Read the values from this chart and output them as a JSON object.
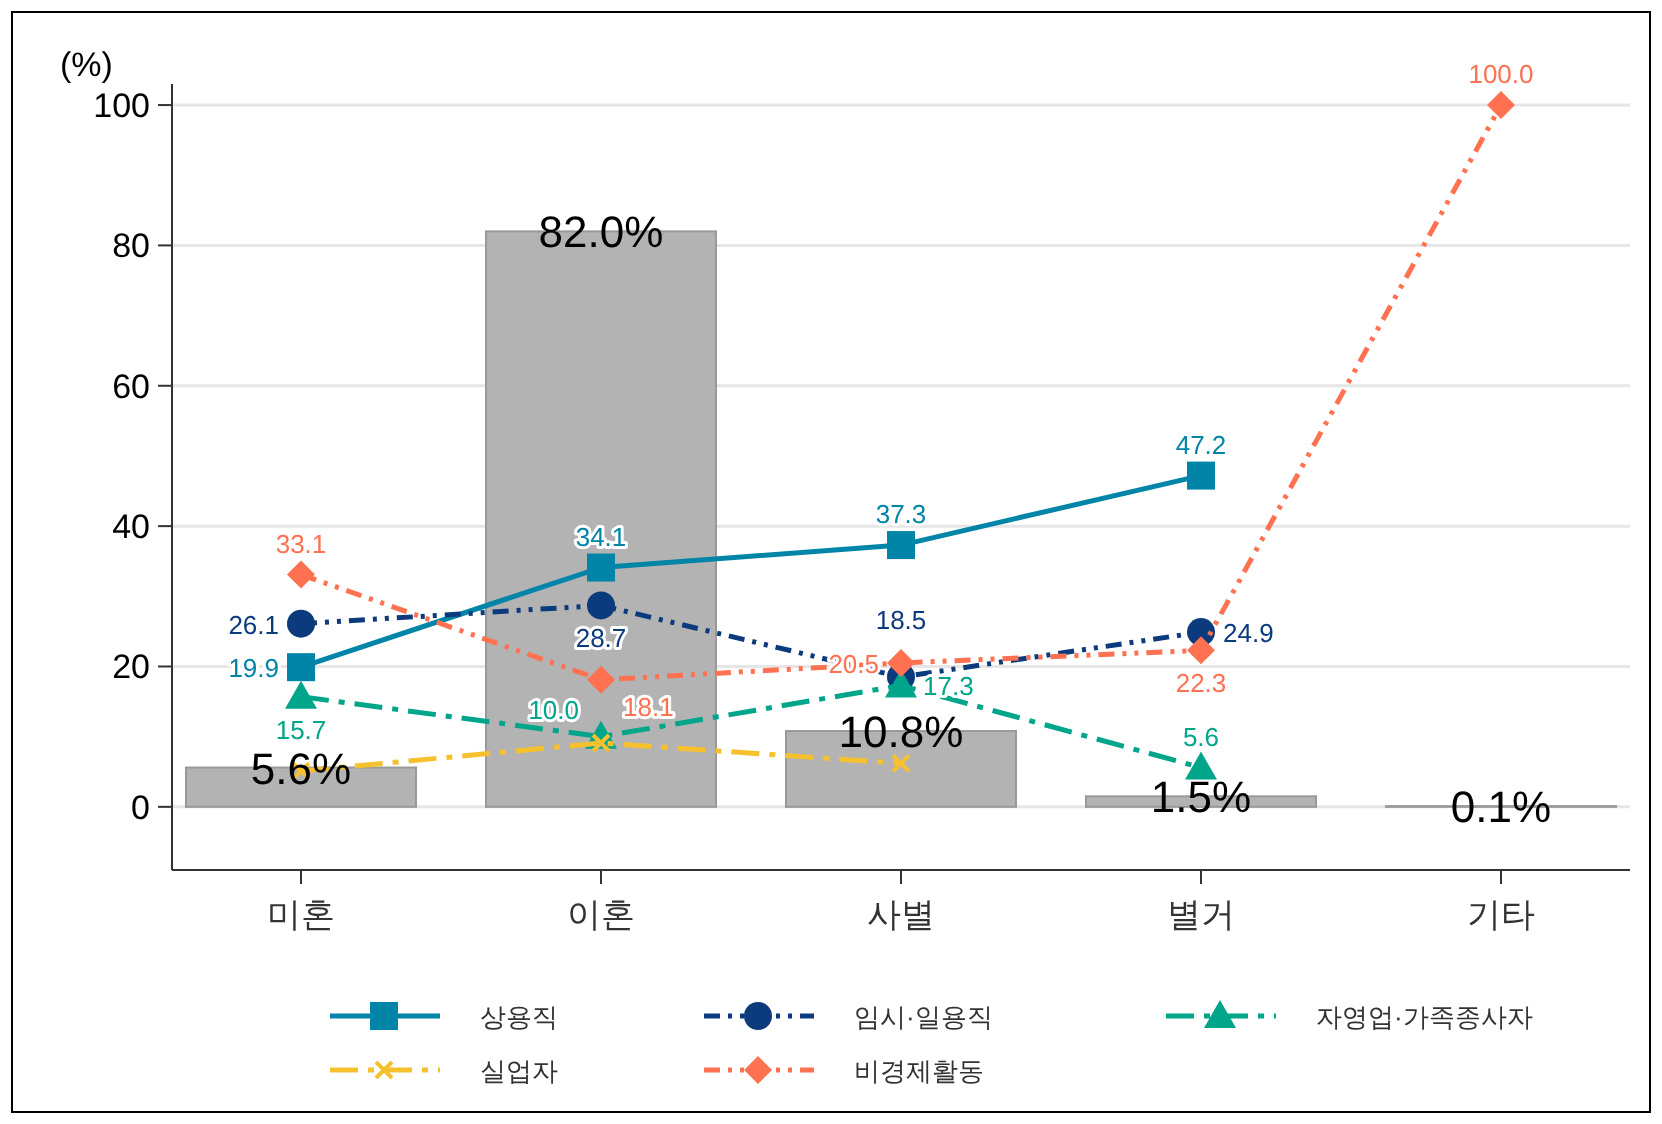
{
  "chart_data": {
    "type": "bar",
    "ylabel": "(%)",
    "categories": [
      "미혼",
      "이혼",
      "사별",
      "별거",
      "기타"
    ],
    "values": [
      5.6,
      82.0,
      10.8,
      1.5,
      0.1
    ],
    "color": "#b3b3b3",
    "value_labels": [
      "5.6%",
      "82.0%",
      "10.8%",
      "1.5%",
      "0.1%"
    ],
    "series": [
      {
        "type": "line",
        "name": "상용직",
        "color": "#0085a8",
        "marker": "square",
        "line_style": "solid",
        "values": [
          19.9,
          34.1,
          37.3,
          47.2,
          null
        ],
        "value_labels": [
          "19.9",
          "34.1",
          "37.3",
          "47.2",
          null
        ]
      },
      {
        "type": "line",
        "name": "임시·일용직",
        "color": "#0b3a7d",
        "marker": "circle",
        "line_style": "dotted",
        "values": [
          26.1,
          28.7,
          18.5,
          24.9,
          null
        ],
        "value_labels": [
          "26.1",
          "28.7",
          "18.5",
          "24.9",
          null
        ]
      },
      {
        "type": "line",
        "name": "자영업·가족종사자",
        "color": "#00a58a",
        "marker": "triangle",
        "line_style": "dashed",
        "values": [
          15.7,
          10.0,
          17.3,
          5.6,
          null
        ],
        "value_labels": [
          "15.7",
          "10.0",
          "17.3",
          "5.6",
          null
        ]
      },
      {
        "type": "line",
        "name": "실업자",
        "color": "#f6c12f",
        "marker": "cross",
        "line_style": "dashed",
        "values": [
          5.1,
          9.1,
          6.2,
          null,
          null
        ]
      },
      {
        "type": "line",
        "name": "비경제활동",
        "color": "#ff7150",
        "marker": "diamond",
        "line_style": "dotted",
        "values": [
          33.1,
          18.1,
          20.5,
          22.3,
          100.0
        ],
        "value_labels": [
          "33.1",
          "18.1",
          "20.5",
          "22.3",
          "100.0"
        ]
      }
    ],
    "ylim": [
      -9,
      103
    ],
    "yticks": [
      0,
      20,
      40,
      60,
      80,
      100
    ],
    "grid": "y",
    "legend": "bottom"
  }
}
